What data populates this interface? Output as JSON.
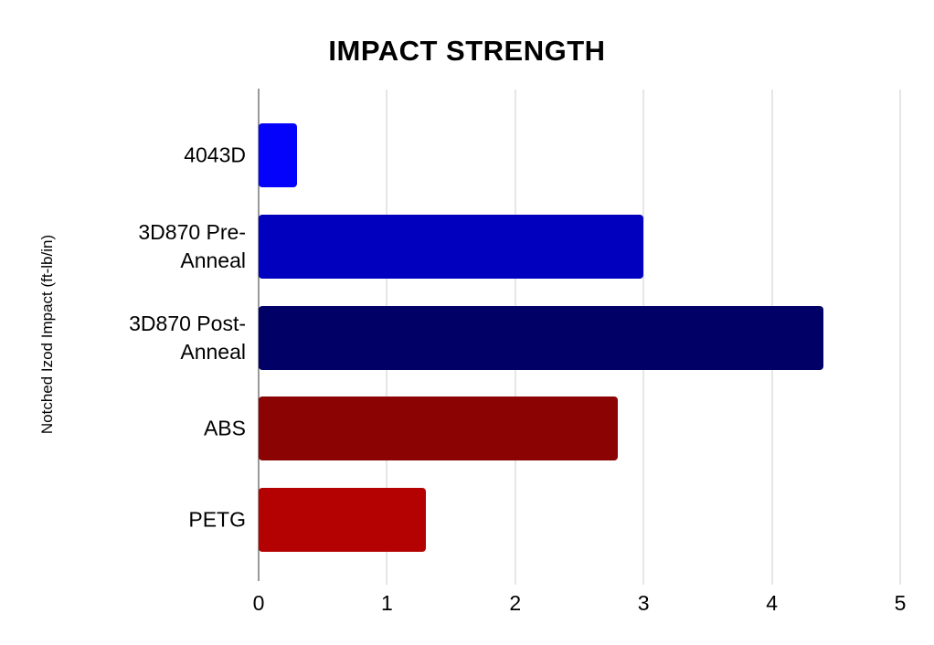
{
  "chart_data": {
    "type": "bar",
    "orientation": "horizontal",
    "title": "IMPACT STRENGTH",
    "xlabel": "",
    "ylabel": "Notched Izod Impact (ft-lb/in)",
    "categories": [
      "4043D",
      "3D870 Pre-Anneal",
      "3D870 Post-Anneal",
      "ABS",
      "PETG"
    ],
    "values": [
      0.3,
      3.0,
      4.4,
      2.8,
      1.3
    ],
    "bar_colors": [
      "#0402FB",
      "#0000BE",
      "#000066",
      "#8B0303",
      "#B40202"
    ],
    "xlim": [
      0,
      5
    ],
    "x_ticks": [
      0,
      1,
      2,
      3,
      4,
      5
    ],
    "grid": true,
    "gridline_color": "#cccccc",
    "zero_line_color": "#333333",
    "legend": "none"
  }
}
